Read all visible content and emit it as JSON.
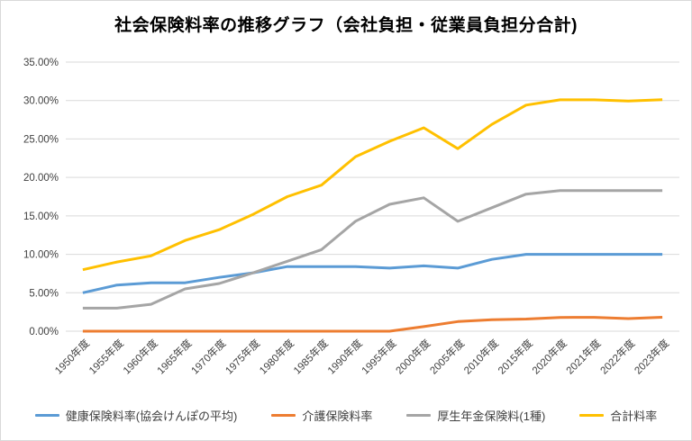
{
  "title": "社会保険料率の推移グラフ（会社負担・従業員負担分合計)",
  "chart_data": {
    "type": "line",
    "categories": [
      "1950年度",
      "1955年度",
      "1960年度",
      "1965年度",
      "1970年度",
      "1975年度",
      "1980年度",
      "1985年度",
      "1990年度",
      "1995年度",
      "2000年度",
      "2005年度",
      "2010年度",
      "2015年度",
      "2020年度",
      "2021年度",
      "2022年度",
      "2023年度"
    ],
    "series": [
      {
        "name": "健康保険料率(協会けんぽの平均)",
        "color": "#5B9BD5",
        "values": [
          5.0,
          6.0,
          6.3,
          6.3,
          7.0,
          7.6,
          8.4,
          8.4,
          8.4,
          8.2,
          8.5,
          8.2,
          9.34,
          10.0,
          10.0,
          10.0,
          10.0,
          10.0
        ]
      },
      {
        "name": "介護保険料率",
        "color": "#ED7D31",
        "values": [
          0,
          0,
          0,
          0,
          0,
          0,
          0,
          0,
          0,
          0,
          0.6,
          1.25,
          1.5,
          1.58,
          1.79,
          1.8,
          1.64,
          1.82
        ]
      },
      {
        "name": "厚生年金保険料(1種)",
        "color": "#A5A5A5",
        "values": [
          3.0,
          3.0,
          3.5,
          5.5,
          6.2,
          7.6,
          9.1,
          10.6,
          14.3,
          16.5,
          17.35,
          14.29,
          16.06,
          17.83,
          18.3,
          18.3,
          18.3,
          18.3
        ]
      },
      {
        "name": "合計料率",
        "color": "#FFC000",
        "values": [
          8.0,
          9.0,
          9.8,
          11.8,
          13.2,
          15.2,
          17.5,
          19.0,
          22.7,
          24.7,
          26.45,
          23.74,
          26.9,
          29.41,
          30.09,
          30.1,
          29.94,
          30.12
        ]
      }
    ],
    "ylim": [
      0,
      35
    ],
    "ytick_labels": [
      "0.00%",
      "5.00%",
      "10.00%",
      "15.00%",
      "20.00%",
      "25.00%",
      "30.00%",
      "35.00%"
    ],
    "xlabel": "",
    "ylabel": "",
    "grid": true,
    "legend_position": "bottom"
  },
  "colors": {
    "gridline": "#d9d9d9",
    "axis_text": "#404040",
    "title_text": "#000000",
    "background": "#ffffff",
    "border": "#d9d9d9"
  }
}
